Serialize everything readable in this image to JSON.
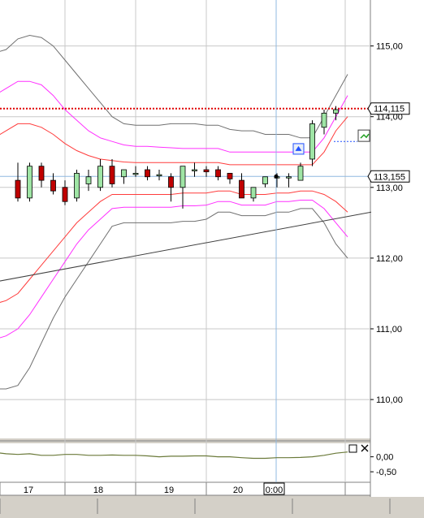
{
  "chart_data": {
    "type": "candlestick",
    "main": {
      "y_ticks": [
        115,
        114,
        113,
        112,
        111,
        110
      ],
      "y_tick_labels": [
        "115,00",
        "114,00",
        "113,00",
        "112,00",
        "111,00",
        "110,00"
      ],
      "ylim": [
        109.45,
        115.65
      ],
      "grid": true,
      "candles": [
        {
          "o": 113.1,
          "h": 113.35,
          "l": 112.8,
          "c": 112.85
        },
        {
          "o": 112.85,
          "h": 113.35,
          "l": 112.8,
          "c": 113.3
        },
        {
          "o": 113.3,
          "h": 113.35,
          "l": 113.0,
          "c": 113.1
        },
        {
          "o": 113.1,
          "h": 113.2,
          "l": 112.9,
          "c": 112.95
        },
        {
          "o": 113.0,
          "h": 113.1,
          "l": 112.75,
          "c": 112.8
        },
        {
          "o": 112.85,
          "h": 113.25,
          "l": 112.8,
          "c": 113.2
        },
        {
          "o": 113.05,
          "h": 113.25,
          "l": 112.95,
          "c": 113.15
        },
        {
          "o": 113.0,
          "h": 113.4,
          "l": 112.95,
          "c": 113.3
        },
        {
          "o": 113.3,
          "h": 113.4,
          "l": 113.0,
          "c": 113.05
        },
        {
          "o": 113.15,
          "h": 113.25,
          "l": 113.05,
          "c": 113.25
        },
        {
          "o": 113.2,
          "h": 113.3,
          "l": 113.15,
          "c": 113.2
        },
        {
          "o": 113.25,
          "h": 113.3,
          "l": 113.1,
          "c": 113.15
        },
        {
          "o": 113.18,
          "h": 113.25,
          "l": 113.1,
          "c": 113.18
        },
        {
          "o": 113.15,
          "h": 113.2,
          "l": 112.8,
          "c": 113.0
        },
        {
          "o": 113.0,
          "h": 113.3,
          "l": 112.7,
          "c": 113.3
        },
        {
          "o": 113.25,
          "h": 113.35,
          "l": 113.15,
          "c": 113.25
        },
        {
          "o": 113.25,
          "h": 113.3,
          "l": 113.15,
          "c": 113.22
        },
        {
          "o": 113.25,
          "h": 113.3,
          "l": 113.1,
          "c": 113.15
        },
        {
          "o": 113.2,
          "h": 113.2,
          "l": 113.05,
          "c": 113.12
        },
        {
          "o": 113.1,
          "h": 113.2,
          "l": 112.85,
          "c": 112.85
        },
        {
          "o": 112.85,
          "h": 113.0,
          "l": 112.8,
          "c": 113.0
        },
        {
          "o": 113.05,
          "h": 113.15,
          "l": 113.0,
          "c": 113.15
        },
        {
          "o": 113.15,
          "h": 113.2,
          "l": 113.0,
          "c": 113.15
        },
        {
          "o": 113.15,
          "h": 113.2,
          "l": 113.0,
          "c": 113.15
        },
        {
          "o": 113.1,
          "h": 113.35,
          "l": 113.1,
          "c": 113.3
        },
        {
          "o": 113.4,
          "h": 113.95,
          "l": 113.3,
          "c": 113.9
        },
        {
          "o": 113.85,
          "h": 114.1,
          "l": 113.75,
          "c": 114.05
        },
        {
          "o": 114.05,
          "h": 114.15,
          "l": 113.95,
          "c": 114.1
        }
      ],
      "bands": {
        "outer_upper": [
          114.9,
          114.95,
          115.1,
          115.15,
          115.12,
          115.0,
          114.8,
          114.6,
          114.4,
          114.2,
          114.0,
          113.9,
          113.88,
          113.88,
          113.88,
          113.9,
          113.9,
          113.9,
          113.88,
          113.88,
          113.82,
          113.8,
          113.8,
          113.75,
          113.75,
          113.75,
          113.7,
          113.7,
          114.0,
          114.3,
          114.6
        ],
        "mid_upper": [
          114.3,
          114.4,
          114.5,
          114.5,
          114.45,
          114.3,
          114.1,
          113.95,
          113.8,
          113.7,
          113.65,
          113.6,
          113.58,
          113.58,
          113.57,
          113.56,
          113.55,
          113.55,
          113.55,
          113.55,
          113.5,
          113.5,
          113.5,
          113.5,
          113.5,
          113.5,
          113.5,
          113.5,
          113.7,
          114.0,
          114.3
        ],
        "inner_upper": [
          113.7,
          113.8,
          113.9,
          113.9,
          113.85,
          113.75,
          113.62,
          113.52,
          113.45,
          113.4,
          113.38,
          113.36,
          113.35,
          113.35,
          113.35,
          113.35,
          113.35,
          113.35,
          113.35,
          113.35,
          113.32,
          113.32,
          113.32,
          113.32,
          113.32,
          113.32,
          113.32,
          113.32,
          113.5,
          113.8,
          114.0
        ],
        "inner_lower": [
          111.35,
          111.4,
          111.5,
          111.7,
          111.9,
          112.1,
          112.3,
          112.5,
          112.65,
          112.8,
          112.9,
          112.9,
          112.9,
          112.9,
          112.9,
          112.9,
          112.92,
          112.92,
          112.92,
          112.95,
          112.95,
          112.9,
          112.9,
          112.9,
          112.92,
          112.92,
          112.95,
          112.95,
          112.9,
          112.8,
          112.65
        ],
        "mid_lower": [
          110.85,
          110.9,
          111.0,
          111.2,
          111.45,
          111.7,
          111.95,
          112.2,
          112.4,
          112.55,
          112.7,
          112.72,
          112.72,
          112.72,
          112.72,
          112.72,
          112.74,
          112.74,
          112.75,
          112.8,
          112.8,
          112.75,
          112.75,
          112.75,
          112.8,
          112.8,
          112.82,
          112.82,
          112.7,
          112.5,
          112.3
        ],
        "outer_lower": [
          110.15,
          110.15,
          110.2,
          110.45,
          110.8,
          111.15,
          111.45,
          111.7,
          111.95,
          112.2,
          112.45,
          112.5,
          112.5,
          112.5,
          112.5,
          112.5,
          112.52,
          112.52,
          112.55,
          112.65,
          112.65,
          112.6,
          112.6,
          112.6,
          112.65,
          112.65,
          112.7,
          112.7,
          112.5,
          112.2,
          112.0
        ]
      },
      "trendline": [
        [
          -4,
          111.6
        ],
        [
          30,
          112.65
        ]
      ],
      "hline_dotted": 114.115,
      "hline_current": 113.155,
      "price_badges": [
        {
          "label": "114,115",
          "value": 114.115
        },
        {
          "label": "113,155",
          "value": 113.155
        }
      ],
      "marker_short_target": 113.65
    },
    "sub": {
      "y_tick_labels": [
        "0,00",
        "-0,50"
      ],
      "ylim": [
        -0.85,
        0.45
      ],
      "values": [
        0.15,
        0.1,
        0.08,
        0.1,
        0.05,
        0.05,
        0.08,
        0.08,
        0.05,
        0.05,
        0.06,
        0.05,
        0.05,
        0.03,
        0.0,
        0.02,
        0.02,
        0.03,
        0.03,
        0.0,
        0.0,
        -0.03,
        -0.05,
        -0.05,
        -0.03,
        -0.03,
        -0.02,
        0.0,
        0.05,
        0.12,
        0.16
      ]
    },
    "x_axis": {
      "labels": [
        "17",
        "18",
        "19",
        "20"
      ],
      "cursor_label": "0:00"
    }
  },
  "colors": {
    "bg": "#ffffff",
    "panel": "#d4d0c8",
    "grid": "#c8c8c8",
    "bull": "#9fe5a5",
    "bear": "#c00000",
    "outer": "#707070",
    "mid": "#ff30ff",
    "inner": "#ff3c3c",
    "dotted": "#e00000",
    "current": "#8fb8e0",
    "trend": "#404040",
    "osc": "#6b7a3a",
    "marker": "#2050ff"
  },
  "icons": {
    "sub_restore": "window-restore-icon",
    "sub_close": "close-icon",
    "signal_buy": "buy-signal-icon",
    "signal_sell": "sell-signal-icon"
  }
}
